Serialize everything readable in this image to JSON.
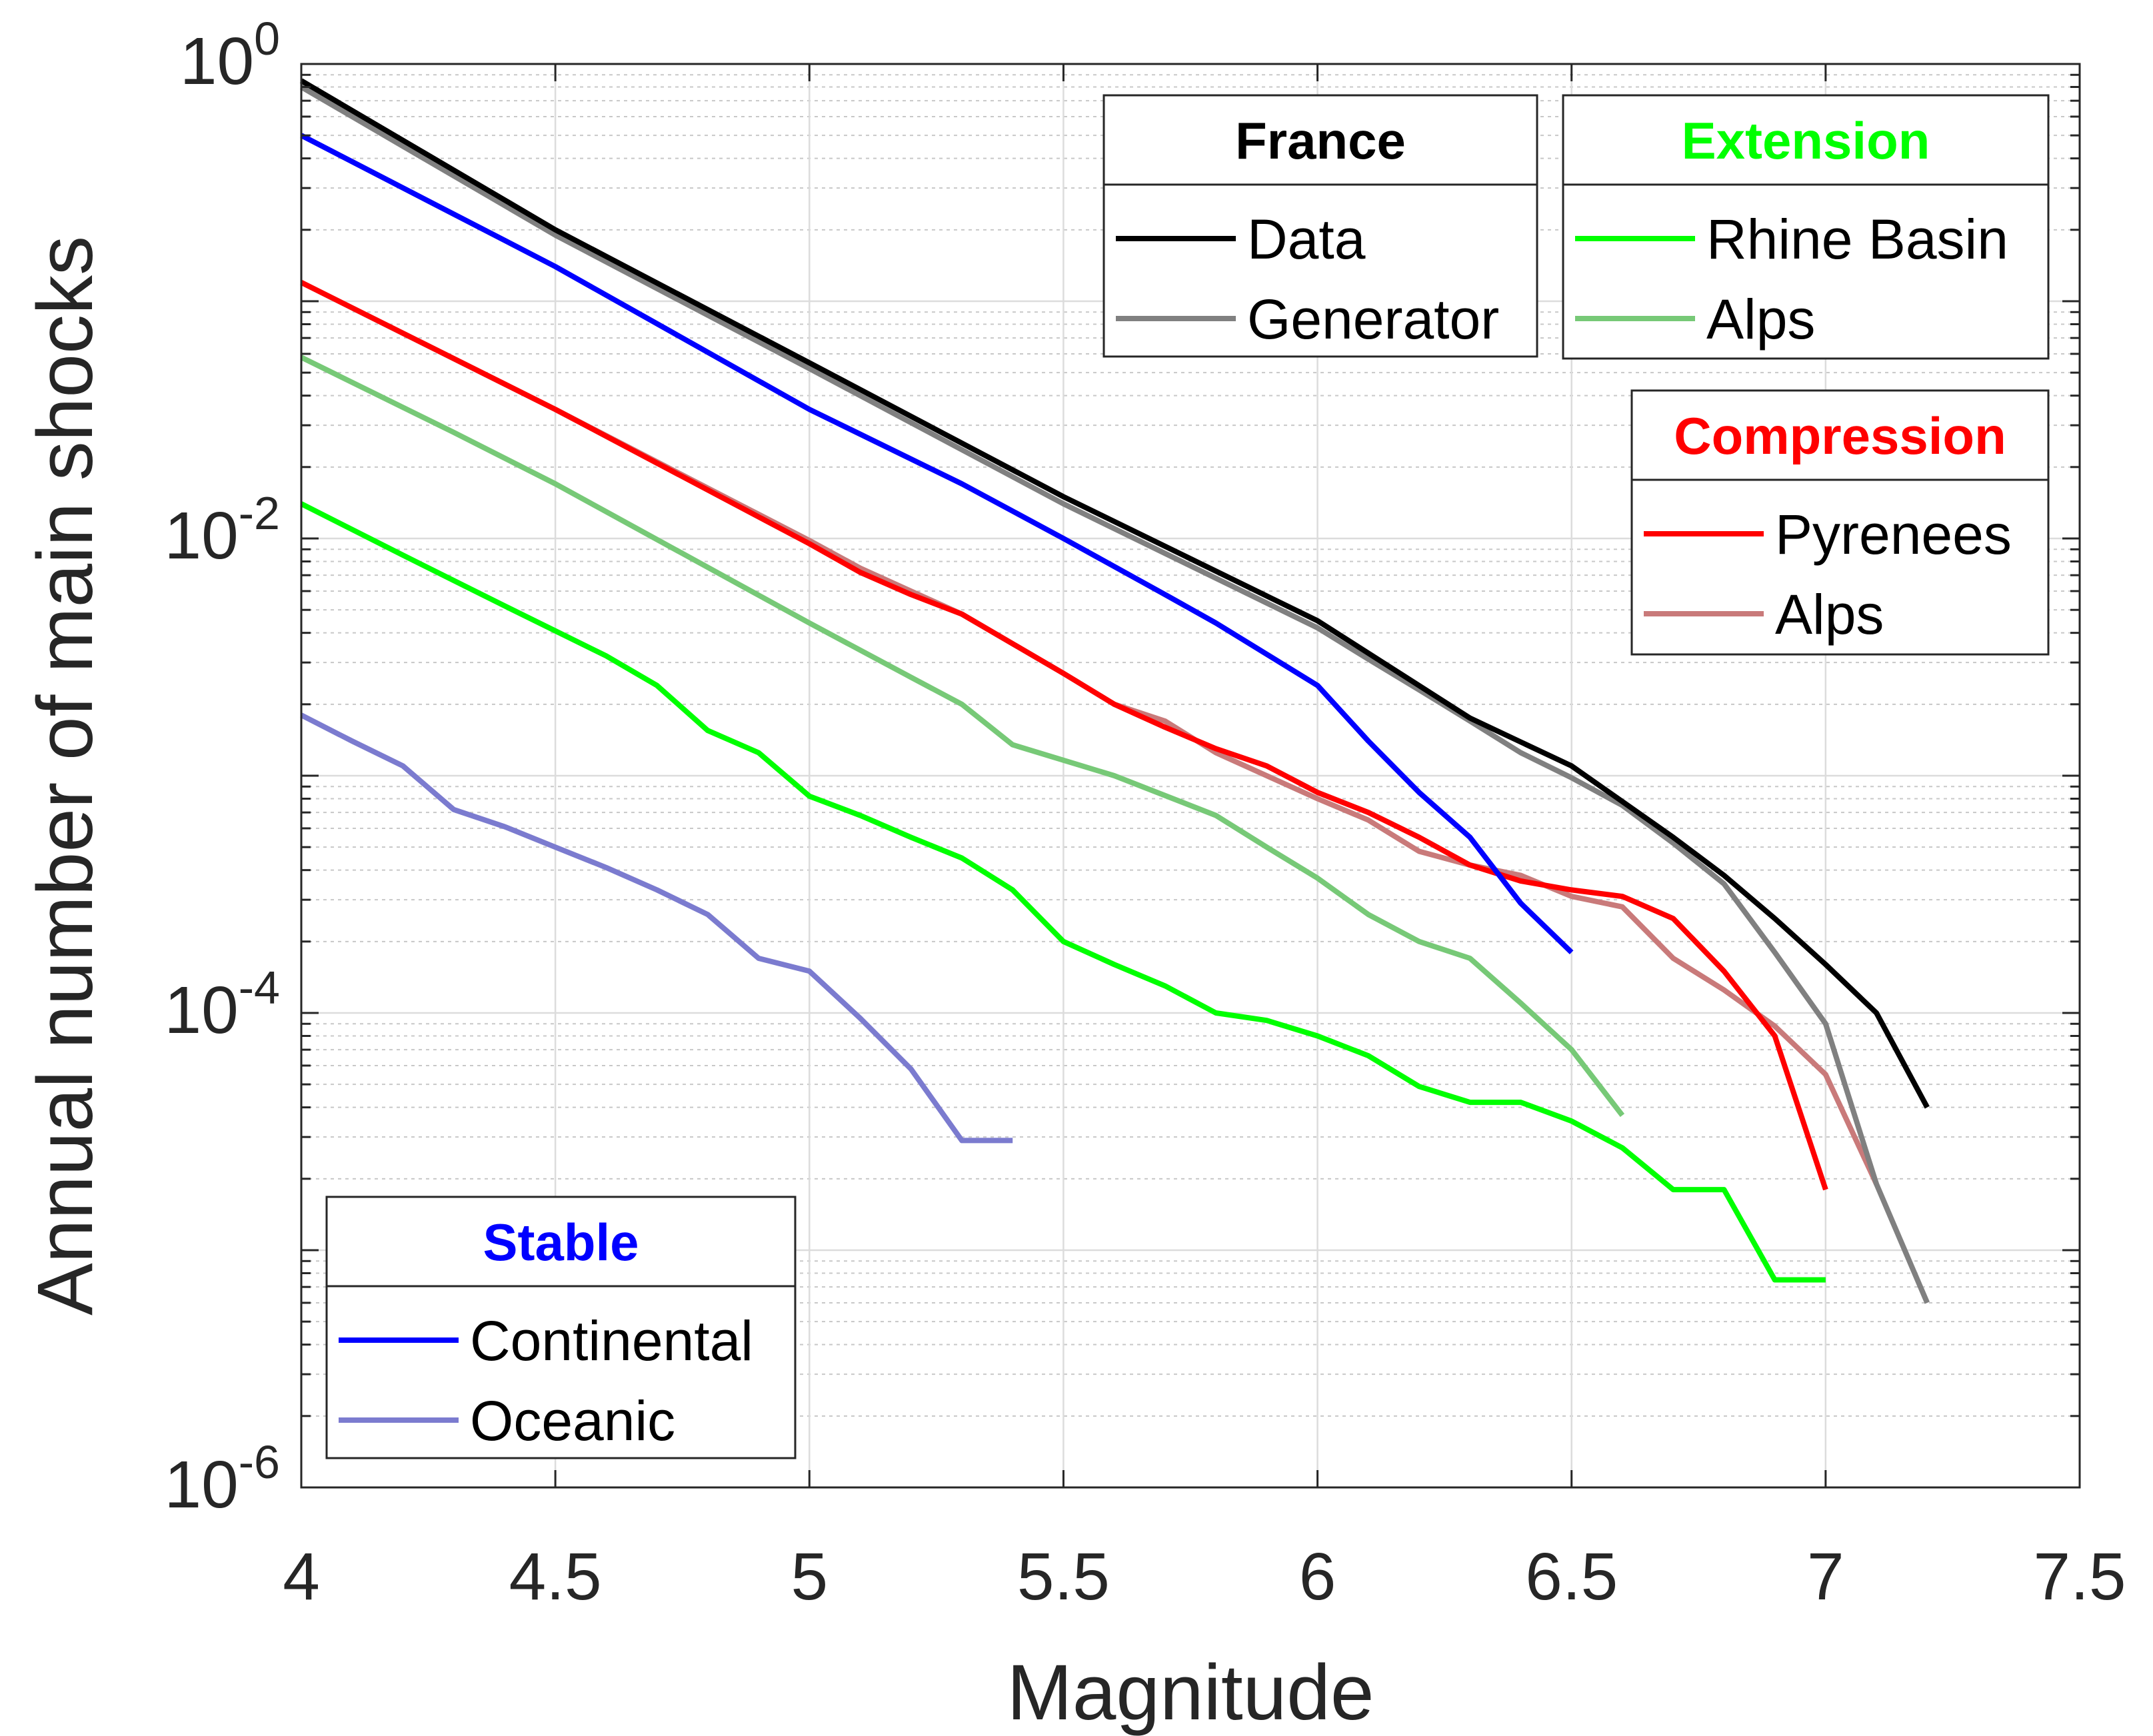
{
  "chart_data": {
    "type": "line",
    "title": "",
    "xlabel": "Magnitude",
    "ylabel": "Annual number of main shocks",
    "xscale": "linear",
    "yscale": "log",
    "xlim": [
      4,
      7.5
    ],
    "ylim": [
      1e-06,
      1
    ],
    "xticks": [
      "4",
      "4.5",
      "5",
      "5.5",
      "6",
      "6.5",
      "7",
      "7.5"
    ],
    "yticks": [
      {
        "base": "10",
        "exp": "0"
      },
      {
        "base": "10",
        "exp": "-2"
      },
      {
        "base": "10",
        "exp": "-4"
      },
      {
        "base": "10",
        "exp": "-6"
      }
    ],
    "grid": true,
    "series": [
      {
        "name": "Data",
        "group": "France",
        "color": "#000000",
        "x": [
          4.0,
          4.5,
          5.0,
          5.5,
          6.0,
          6.3,
          6.5,
          6.7,
          6.8,
          6.9,
          7.0,
          7.1,
          7.2
        ],
        "y": [
          0.85,
          0.2,
          0.055,
          0.015,
          0.0045,
          0.00175,
          0.0011,
          0.00055,
          0.00038,
          0.00025,
          0.00016,
          0.0001,
          4e-05
        ]
      },
      {
        "name": "Generator",
        "group": "France",
        "color": "#808080",
        "x": [
          4.0,
          4.5,
          5.0,
          5.5,
          6.0,
          6.1,
          6.2,
          6.3,
          6.4,
          6.5,
          6.6,
          6.7,
          6.8,
          6.9,
          7.0,
          7.1,
          7.2
        ],
        "y": [
          0.8,
          0.19,
          0.052,
          0.014,
          0.0042,
          0.0031,
          0.0023,
          0.0017,
          0.00125,
          0.00098,
          0.00075,
          0.00052,
          0.00035,
          0.00018,
          9e-05,
          1.9e-05,
          6e-06
        ]
      },
      {
        "name": "Continental",
        "group": "Stable",
        "color": "#0000ff",
        "x": [
          4.0,
          4.5,
          5.0,
          5.3,
          5.5,
          5.7,
          5.8,
          6.0,
          6.1,
          6.2,
          6.3,
          6.4,
          6.5
        ],
        "y": [
          0.5,
          0.14,
          0.035,
          0.017,
          0.01,
          0.0058,
          0.0044,
          0.0024,
          0.0014,
          0.00085,
          0.00055,
          0.00029,
          0.00018
        ]
      },
      {
        "name": "Oceanic",
        "group": "Stable",
        "color": "#7b7bcf",
        "x": [
          4.0,
          4.1,
          4.2,
          4.3,
          4.4,
          4.5,
          4.6,
          4.7,
          4.8,
          4.9,
          5.0,
          5.1,
          5.2,
          5.3,
          5.4
        ],
        "y": [
          0.0018,
          0.0014,
          0.0011,
          0.00072,
          0.00061,
          0.0005,
          0.00041,
          0.00033,
          0.00026,
          0.00017,
          0.00015,
          9.5e-05,
          5.8e-05,
          2.9e-05,
          2.9e-05
        ]
      },
      {
        "name": "Rhine Basin",
        "group": "Extension",
        "color": "#00ff00",
        "x": [
          4.0,
          4.2,
          4.4,
          4.6,
          4.7,
          4.8,
          4.9,
          5.0,
          5.1,
          5.2,
          5.3,
          5.4,
          5.5,
          5.6,
          5.7,
          5.8,
          5.9,
          6.0,
          6.1,
          6.2,
          6.3,
          6.4,
          6.5,
          6.6,
          6.7,
          6.8,
          6.9,
          7.0
        ],
        "y": [
          0.014,
          0.0085,
          0.0052,
          0.0032,
          0.0024,
          0.00155,
          0.00125,
          0.00082,
          0.00068,
          0.00055,
          0.00045,
          0.00033,
          0.0002,
          0.00016,
          0.00013,
          0.0001,
          9.3e-05,
          8e-05,
          6.6e-05,
          4.9e-05,
          4.2e-05,
          4.2e-05,
          3.5e-05,
          2.7e-05,
          1.8e-05,
          1.8e-05,
          7.5e-06,
          7.5e-06
        ]
      },
      {
        "name": "Alps",
        "group": "Extension",
        "color": "#77c977",
        "x": [
          4.0,
          4.3,
          4.5,
          5.0,
          5.2,
          5.3,
          5.4,
          5.6,
          5.8,
          5.9,
          6.0,
          6.1,
          6.2,
          6.3,
          6.4,
          6.5,
          6.6
        ],
        "y": [
          0.058,
          0.028,
          0.017,
          0.0044,
          0.0026,
          0.002,
          0.00135,
          0.001,
          0.00068,
          0.0005,
          0.00037,
          0.00026,
          0.0002,
          0.00017,
          0.00011,
          7e-05,
          3.7e-05
        ]
      },
      {
        "name": "Pyrenees",
        "group": "Compression",
        "color": "#ff0000",
        "x": [
          4.0,
          4.5,
          5.0,
          5.1,
          5.2,
          5.3,
          5.5,
          5.6,
          5.7,
          5.8,
          5.9,
          6.0,
          6.1,
          6.2,
          6.3,
          6.4,
          6.5,
          6.6,
          6.7,
          6.8,
          6.9,
          7.0
        ],
        "y": [
          0.12,
          0.035,
          0.0095,
          0.0072,
          0.0058,
          0.0048,
          0.0027,
          0.002,
          0.0016,
          0.0013,
          0.0011,
          0.00085,
          0.0007,
          0.00055,
          0.00042,
          0.00036,
          0.00033,
          0.00031,
          0.00025,
          0.00015,
          8e-05,
          1.8e-05
        ]
      },
      {
        "name": "Alps",
        "group": "Compression",
        "color": "#c97a7a",
        "x": [
          4.0,
          4.5,
          5.0,
          5.1,
          5.2,
          5.3,
          5.5,
          5.6,
          5.7,
          5.8,
          5.9,
          6.0,
          6.1,
          6.2,
          6.3,
          6.4,
          6.5,
          6.6,
          6.7,
          6.8,
          6.9,
          7.0,
          7.1
        ],
        "y": [
          0.12,
          0.035,
          0.0098,
          0.0075,
          0.006,
          0.0048,
          0.0027,
          0.002,
          0.0017,
          0.00125,
          0.001,
          0.0008,
          0.00065,
          0.00048,
          0.00042,
          0.00038,
          0.00031,
          0.00028,
          0.00017,
          0.000125,
          8.8e-05,
          5.5e-05,
          1.9e-05
        ]
      }
    ],
    "legends": [
      {
        "title": "France",
        "title_color": "#000000",
        "placement": "top-center",
        "entries": [
          "Data",
          "Generator"
        ]
      },
      {
        "title": "Extension",
        "title_color": "#00ff00",
        "placement": "top-right",
        "entries": [
          "Rhine Basin",
          "Alps"
        ]
      },
      {
        "title": "Compression",
        "title_color": "#ff0000",
        "placement": "right",
        "entries": [
          "Pyrenees",
          "Alps"
        ]
      },
      {
        "title": "Stable",
        "title_color": "#0000ff",
        "placement": "bottom-left",
        "entries": [
          "Continental",
          "Oceanic"
        ]
      }
    ]
  }
}
